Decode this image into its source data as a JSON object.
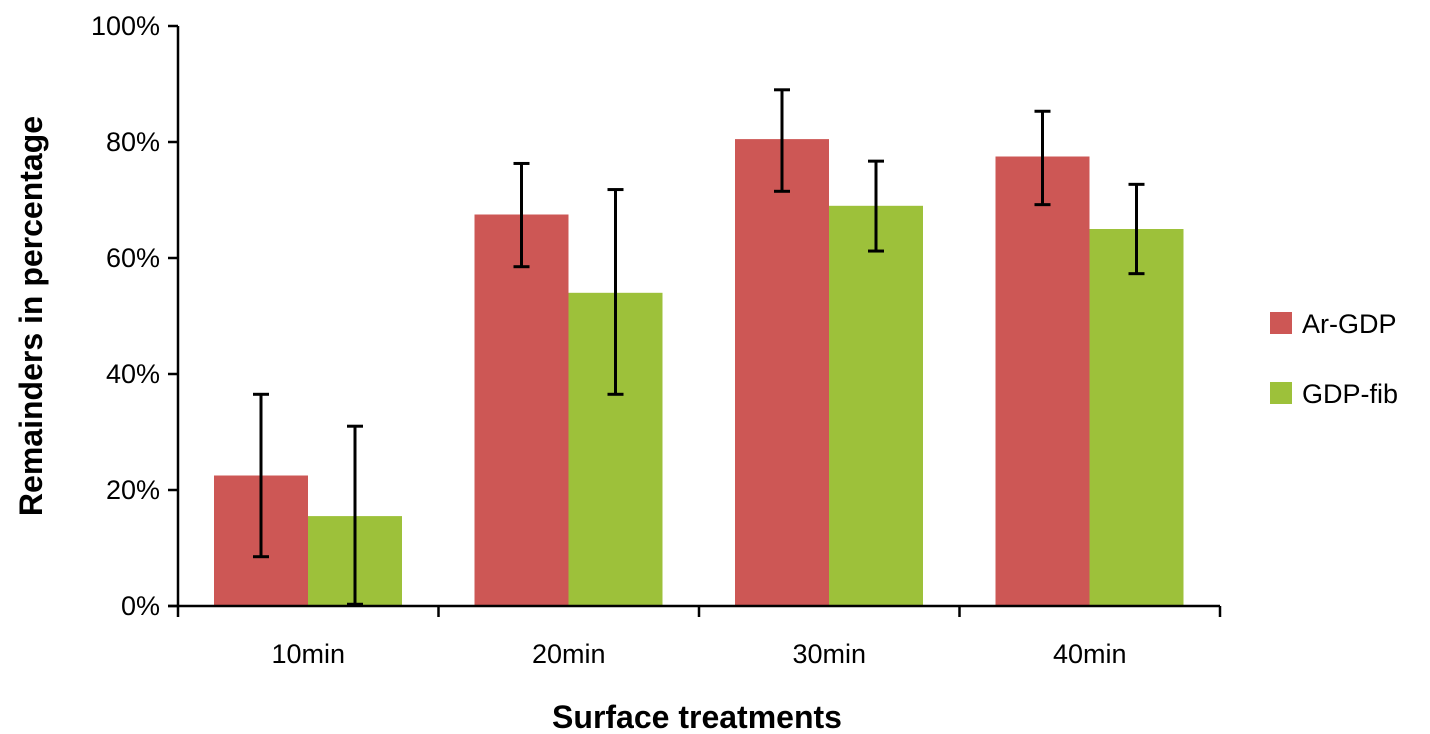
{
  "chart_data": {
    "type": "bar",
    "xlabel": "Surface treatments",
    "ylabel": "Remainders in percentage",
    "categories": [
      "10min",
      "20min",
      "30min",
      "40min"
    ],
    "ylim": [
      0,
      100
    ],
    "yticks": [
      "0%",
      "20%",
      "40%",
      "60%",
      "80%",
      "100%"
    ],
    "y_tick_values": [
      0,
      20,
      40,
      60,
      80,
      100
    ],
    "grid": false,
    "legend_position": "right",
    "series": [
      {
        "name": "Ar-GDP",
        "color": "#cd5755",
        "values": [
          22.5,
          67.5,
          80.5,
          77.5
        ],
        "err_low": [
          8.5,
          58.5,
          71.5,
          69.2
        ],
        "err_high": [
          36.5,
          76.3,
          89.0,
          85.3
        ]
      },
      {
        "name": "GDP-fib",
        "color": "#9dc13a",
        "values": [
          15.5,
          54.0,
          69.0,
          65.0
        ],
        "err_low": [
          0.3,
          36.5,
          61.2,
          57.3
        ],
        "err_high": [
          31.0,
          71.8,
          76.7,
          72.7
        ]
      }
    ]
  }
}
